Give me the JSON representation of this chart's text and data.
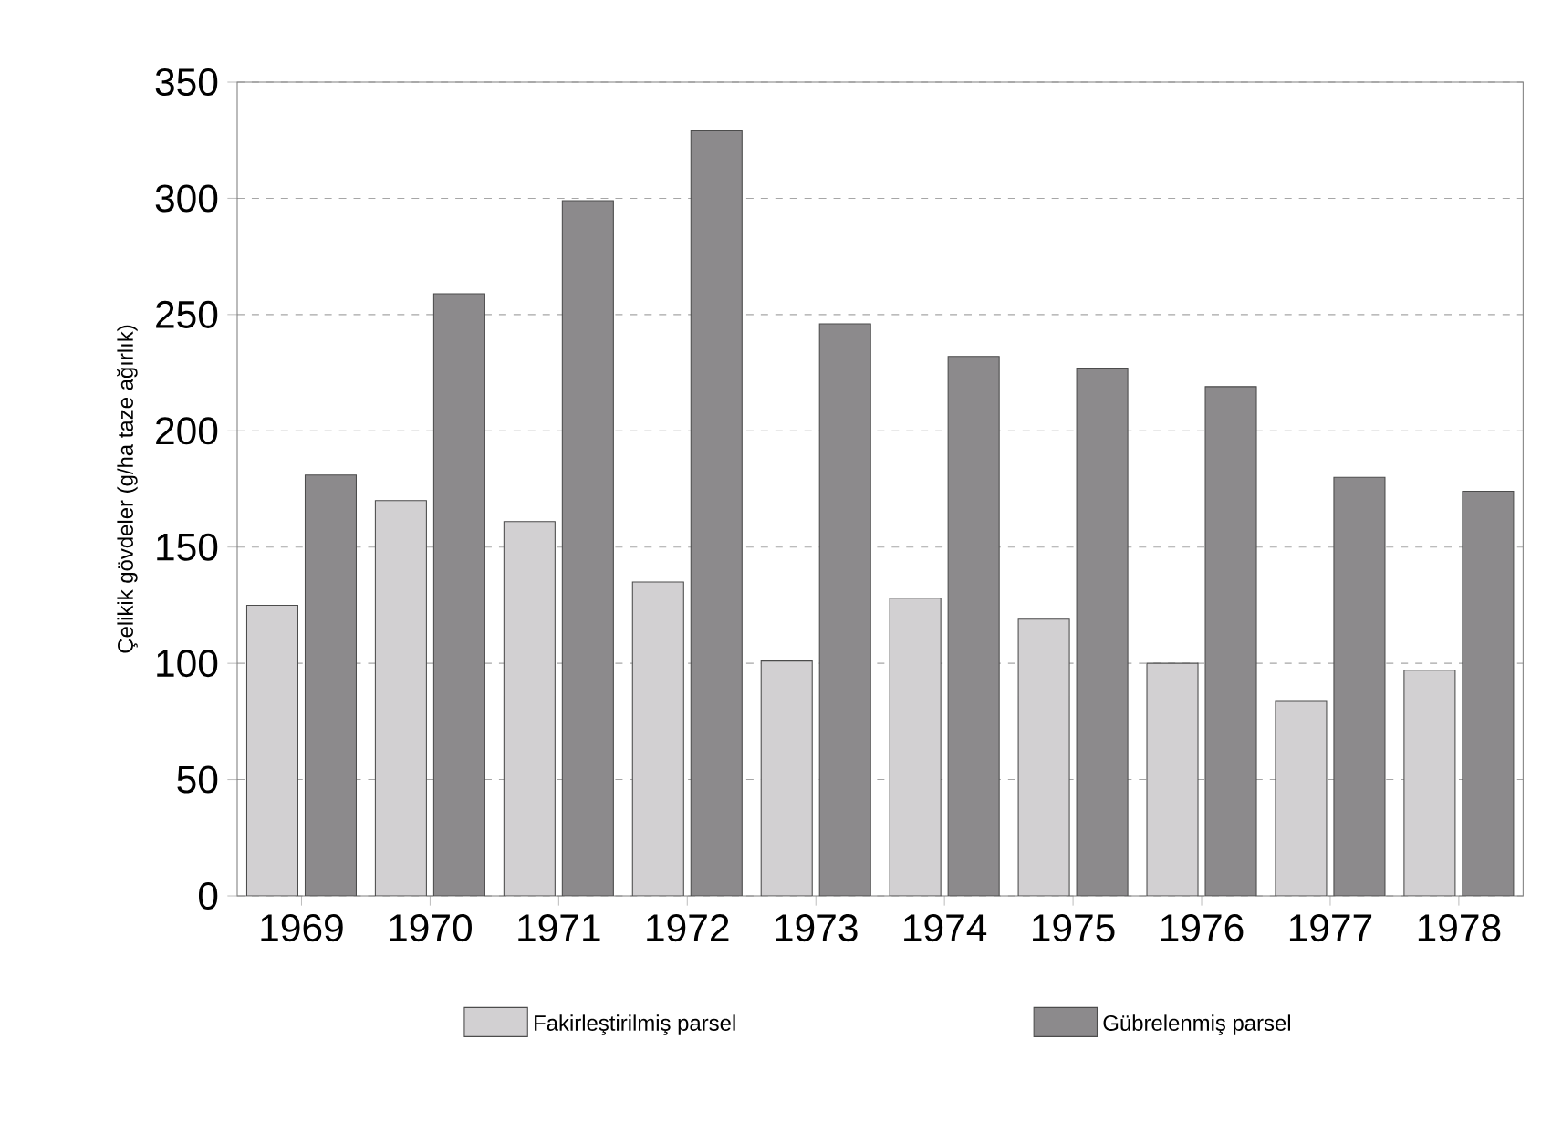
{
  "chart_data": {
    "type": "bar",
    "ylabel": "Çelikik gövdeler (g/ha taze ağırlık)",
    "categories": [
      "1969",
      "1970",
      "1971",
      "1972",
      "1973",
      "1974",
      "1975",
      "1976",
      "1977",
      "1978"
    ],
    "series": [
      {
        "name": "Fakirleştirilmiş parsel",
        "color": "#d2d0d2",
        "values": [
          125,
          170,
          161,
          135,
          101,
          128,
          119,
          100,
          84,
          97
        ]
      },
      {
        "name": "Gübrelenmiş parsel",
        "color": "#8c8a8c",
        "values": [
          181,
          259,
          299,
          329,
          246,
          232,
          227,
          219,
          180,
          174
        ]
      }
    ],
    "ylim": [
      0,
      350
    ],
    "yticks": [
      0,
      50,
      100,
      150,
      200,
      250,
      300,
      350
    ],
    "grid": "y",
    "legend": "bottom"
  }
}
